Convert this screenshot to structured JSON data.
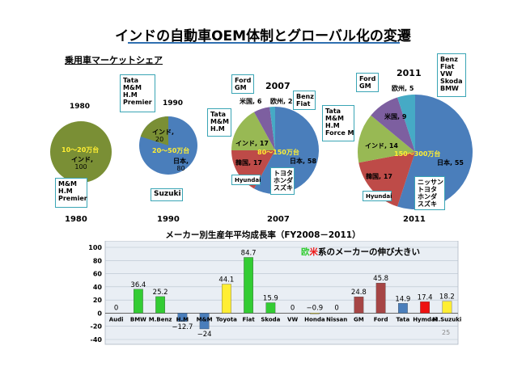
{
  "title": "インドの自動車OEM体制とグローバル化の変遷",
  "subtitle": "乗用車マーケットシェア",
  "market": {
    "p1980": {
      "year_top": "1980",
      "year_bottom": "1980",
      "range": "10〜20万台",
      "india_label": "インド,",
      "india_value": "100",
      "makers": [
        "M&M",
        "H.M",
        "Premier"
      ]
    },
    "p1990": {
      "year_top": "1990",
      "year_bottom": "1990",
      "range": "20〜50万台",
      "india_label": "インド,",
      "india_value": "20",
      "japan_label": "日本,",
      "japan_value": "80",
      "makers_top": [
        "Tata",
        "M&M",
        "H.M",
        "Premier"
      ],
      "suzuki": "Suzuki"
    },
    "p2007": {
      "year_top": "2007",
      "year_bottom": "2007",
      "range": "80〜150万台",
      "slices": [
        {
          "name": "日本",
          "value": 58,
          "label": "日本, 58",
          "color": "#4a7ebb"
        },
        {
          "name": "韓国",
          "value": 17,
          "label": "韓国, 17",
          "color": "#be4b48"
        },
        {
          "name": "インド",
          "value": 17,
          "label": "インド, 17",
          "color": "#98b954"
        },
        {
          "name": "米国",
          "value": 6,
          "label": "米国, 6",
          "color": "#7d5fa0"
        },
        {
          "name": "欧州",
          "value": 2,
          "label": "欧州, 2",
          "color": "#46aac5"
        }
      ],
      "ford": [
        "Ford",
        "GM"
      ],
      "benz": [
        "Benz",
        "Fiat"
      ],
      "tata": [
        "Tata",
        "M&M",
        "H.M"
      ],
      "hyundai": "Hyundai",
      "japan_makers": [
        "トヨタ",
        "ホンダ",
        "スズキ"
      ]
    },
    "p2011": {
      "year_top": "2011",
      "year_bottom": "2011",
      "range": "150〜300万台",
      "slices": [
        {
          "name": "日本",
          "value": 55,
          "label": "日本, 55",
          "color": "#4a7ebb"
        },
        {
          "name": "韓国",
          "value": 17,
          "label": "韓国, 17",
          "color": "#be4b48"
        },
        {
          "name": "インド",
          "value": 14,
          "label": "インド, 14",
          "color": "#98b954"
        },
        {
          "name": "米国",
          "value": 9,
          "label": "米国, 9",
          "color": "#7d5fa0"
        },
        {
          "name": "欧州",
          "value": 5,
          "label": "欧州, 5",
          "color": "#46aac5"
        }
      ],
      "ford": [
        "Ford",
        "GM"
      ],
      "benz": [
        "Benz",
        "Fiat",
        "VW",
        "Skoda",
        "BMW"
      ],
      "tata": [
        "Tata",
        "M&M",
        "H.M",
        "Force M"
      ],
      "hyundai": "Hyundai",
      "japan_makers": [
        "ニッサン",
        "トヨタ",
        "ホンダ",
        "スズキ"
      ]
    }
  },
  "growth": {
    "title": "メーカー別生産年平均成長率（FY2008－2011）",
    "note_eu": "欧",
    "note_us": "米",
    "note_rest": "系のメーカーの伸び大きい",
    "page_number": "25"
  },
  "chart_data": {
    "type": "bar",
    "title": "メーカー別生産年平均成長率（FY2008－2011）",
    "categories": [
      "Audi",
      "BMW",
      "M.Benz",
      "H.M",
      "M&M",
      "Toyota",
      "Fiat",
      "Skoda",
      "VW",
      "Honda",
      "Nissan",
      "GM",
      "Ford",
      "Tata",
      "Hymdai",
      "M.Suzuki"
    ],
    "values": [
      0,
      36.4,
      25.2,
      -12.7,
      -24,
      44.1,
      84.7,
      15.9,
      0,
      -0.9,
      0,
      24.8,
      45.8,
      14.9,
      17.4,
      18.2
    ],
    "value_labels": [
      "0",
      "36.4",
      "25.2",
      "−12.7",
      "−24",
      "44.1",
      "84.7",
      "15.9",
      "0",
      "−0.9",
      "0",
      "24.8",
      "45.8",
      "14.9",
      "17.4",
      "18.2"
    ],
    "colors": [
      "#33cc33",
      "#33cc33",
      "#33cc33",
      "#4a7ebb",
      "#4a7ebb",
      "#ffee33",
      "#33cc33",
      "#33cc33",
      "#33cc33",
      "#ffee33",
      "#ffee33",
      "#a64545",
      "#a64545",
      "#4a7ebb",
      "#ee1111",
      "#ffee33"
    ],
    "ylim": [
      -40,
      100
    ],
    "yticks": [
      "100",
      "80",
      "60",
      "40",
      "20",
      "0",
      "-20",
      "-40"
    ],
    "ytick_values": [
      100,
      80,
      60,
      40,
      20,
      0,
      -20,
      -40
    ],
    "grid": true
  }
}
